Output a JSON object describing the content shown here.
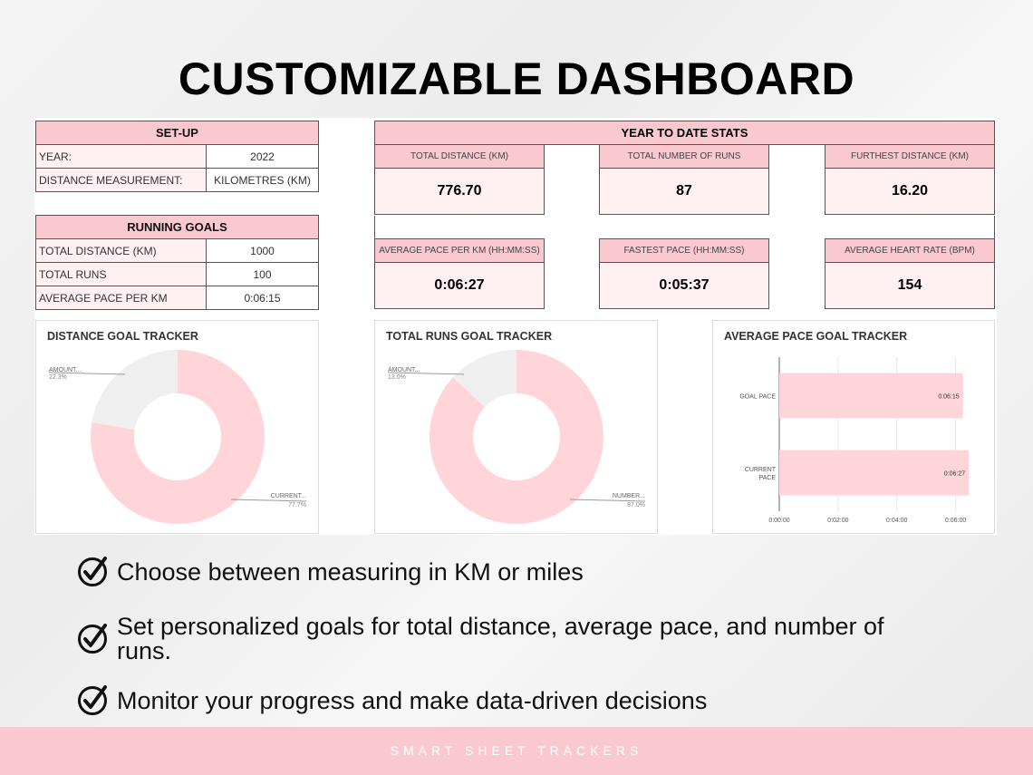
{
  "headline": "CUSTOMIZABLE DASHBOARD",
  "setup": {
    "title": "SET-UP",
    "rows": [
      {
        "label": "YEAR:",
        "value": "2022"
      },
      {
        "label": "DISTANCE MEASUREMENT:",
        "value": "KILOMETRES (KM)"
      }
    ]
  },
  "goals": {
    "title": "RUNNING GOALS",
    "rows": [
      {
        "label": "TOTAL DISTANCE (KM)",
        "value": "1000"
      },
      {
        "label": "TOTAL RUNS",
        "value": "100"
      },
      {
        "label": "AVERAGE PACE PER KM",
        "value": "0:06:15"
      }
    ]
  },
  "ytd": {
    "title": "YEAR TO DATE STATS",
    "stats": [
      {
        "label": "TOTAL DISTANCE (KM)",
        "value": "776.70"
      },
      {
        "label": "TOTAL NUMBER OF RUNS",
        "value": "87"
      },
      {
        "label": "FURTHEST DISTANCE (KM)",
        "value": "16.20"
      },
      {
        "label": "AVERAGE PACE PER KM (HH:MM:SS)",
        "value": "0:06:27"
      },
      {
        "label": "FASTEST PACE (HH:MM:SS)",
        "value": "0:05:37"
      },
      {
        "label": "AVERAGE HEART RATE (BPM)",
        "value": "154"
      }
    ]
  },
  "colors": {
    "pink": "#f9c9cf",
    "pink_light": "#fff0f2",
    "donut_pink": "#ffd5da",
    "donut_grey": "#efefef"
  },
  "chart_data": [
    {
      "type": "pie",
      "title": "DISTANCE GOAL TRACKER",
      "slices": [
        {
          "label": "CURRENT",
          "pct_label": "77.7%",
          "value": 77.7
        },
        {
          "label": "AMOUNT",
          "pct_label": "22.3%",
          "value": 22.3
        }
      ]
    },
    {
      "type": "pie",
      "title": "TOTAL RUNS GOAL TRACKER",
      "slices": [
        {
          "label": "NUMBER",
          "pct_label": "87.0%",
          "value": 87.0
        },
        {
          "label": "AMOUNT",
          "pct_label": "13.0%",
          "value": 13.0
        }
      ]
    },
    {
      "type": "bar",
      "title": "AVERAGE PACE GOAL TRACKER",
      "categories": [
        "GOAL PACE",
        "CURRENT PACE"
      ],
      "values_seconds": [
        375,
        387
      ],
      "value_labels": [
        "0:06:15",
        "0:06:27"
      ],
      "xlim_seconds": [
        0,
        420
      ],
      "xticks": [
        {
          "label": "0:00:00",
          "seconds": 0
        },
        {
          "label": "0:02:00",
          "seconds": 120
        },
        {
          "label": "0:04:00",
          "seconds": 240
        },
        {
          "label": "0:06:00",
          "seconds": 360
        }
      ],
      "grid": true
    }
  ],
  "features": [
    {
      "icon": "check-circle-icon",
      "text": "Choose between measuring in KM or miles"
    },
    {
      "icon": "check-circle-icon",
      "text": "Set personalized goals for total distance, average pace, and number of runs."
    },
    {
      "icon": "check-circle-icon",
      "text": "Monitor your progress and make data-driven decisions"
    }
  ],
  "footer": "SMART SHEET TRACKERS"
}
